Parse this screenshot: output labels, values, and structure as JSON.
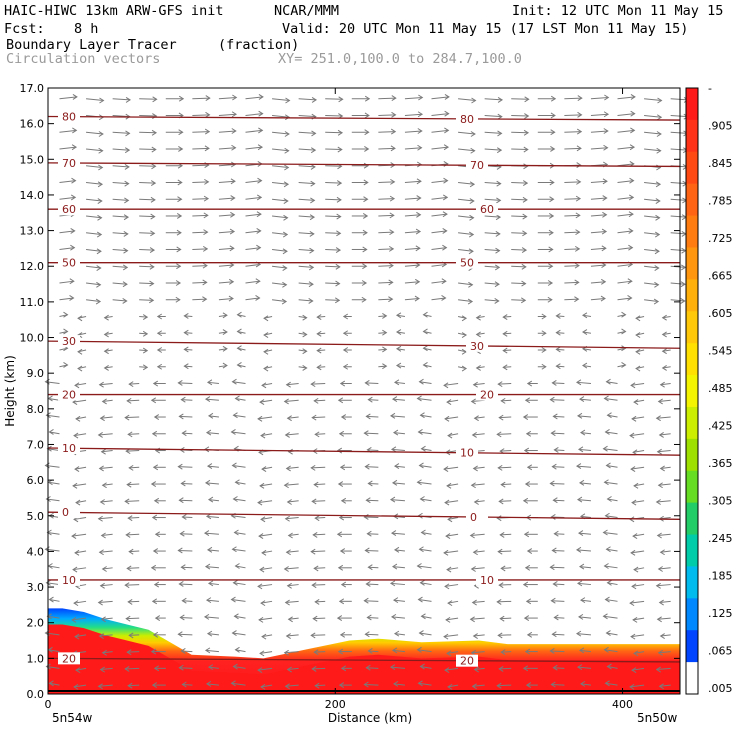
{
  "header": {
    "model": "HAIC-HIWC 13km ARW-GFS init",
    "org": "NCAR/MMM",
    "init": "Init: 12 UTC Mon 11 May 15",
    "fcst_label": "Fcst:",
    "fcst_value": "8 h",
    "valid": "Valid: 20 UTC Mon 11 May 15 (17 LST Mon 11 May 15)",
    "field": "Boundary Layer Tracer",
    "field_units": "(fraction)",
    "vectors": "Circulation vectors",
    "xy": "XY= 251.0,100.0 to 284.7,100.0"
  },
  "chart_data": {
    "type": "heatmap",
    "xlabel": "Distance (km)",
    "ylabel": "Height (km)",
    "xlim": [
      0,
      440
    ],
    "ylim": [
      0.0,
      17.0
    ],
    "x_ticks": [
      "0",
      "200",
      "400"
    ],
    "x_end_labels": [
      "5n54w",
      "5n50w"
    ],
    "y_ticks": [
      "0.0",
      "1.0",
      "2.0",
      "3.0",
      "4.0",
      "5.0",
      "6.0",
      "7.0",
      "8.0",
      "9.0",
      "10.0",
      "11.0",
      "12.0",
      "13.0",
      "14.0",
      "15.0",
      "16.0",
      "17.0"
    ],
    "colorbar": {
      "labels": [
        "-",
        ".905",
        ".845",
        ".785",
        ".725",
        ".665",
        ".605",
        ".545",
        ".485",
        ".425",
        ".365",
        ".305",
        ".245",
        ".185",
        ".125",
        ".065",
        ".005"
      ],
      "colors": [
        "#ff1a1a",
        "#ff3318",
        "#ff4a14",
        "#ff6414",
        "#ff7d10",
        "#ff960e",
        "#ffb00a",
        "#ffc808",
        "#ffe000",
        "#f4f400",
        "#ccee00",
        "#9ee000",
        "#66dd22",
        "#22cc66",
        "#00ccaa",
        "#00bbee",
        "#0088ff",
        "#0044ff"
      ]
    },
    "tracer_top_km": [
      [
        0,
        2.4
      ],
      [
        10,
        2.4
      ],
      [
        25,
        2.3
      ],
      [
        40,
        2.1
      ],
      [
        55,
        1.95
      ],
      [
        70,
        1.8
      ],
      [
        85,
        1.45
      ],
      [
        100,
        1.1
      ],
      [
        130,
        1.05
      ],
      [
        150,
        1.0
      ],
      [
        180,
        1.25
      ],
      [
        210,
        1.5
      ],
      [
        230,
        1.55
      ],
      [
        260,
        1.45
      ],
      [
        300,
        1.5
      ],
      [
        320,
        1.4
      ],
      [
        360,
        1.4
      ],
      [
        400,
        1.4
      ],
      [
        440,
        1.4
      ]
    ],
    "isotherms": [
      {
        "label": "80",
        "y": [
          16.2,
          16.1
        ]
      },
      {
        "label": "70",
        "y": [
          14.9,
          14.8
        ]
      },
      {
        "label": "60",
        "y": [
          13.6,
          13.6
        ]
      },
      {
        "label": "50",
        "y": [
          12.1,
          12.1
        ]
      },
      {
        "label": "30",
        "y": [
          9.9,
          9.7
        ]
      },
      {
        "label": "20",
        "y": [
          8.4,
          8.4
        ]
      },
      {
        "label": "10",
        "y": [
          6.9,
          6.7
        ]
      },
      {
        "label": "0",
        "y": [
          5.1,
          4.9
        ]
      },
      {
        "label": "10",
        "y": [
          3.2,
          3.2
        ]
      },
      {
        "label": "20",
        "y": [
          1.0,
          0.9
        ]
      }
    ]
  }
}
